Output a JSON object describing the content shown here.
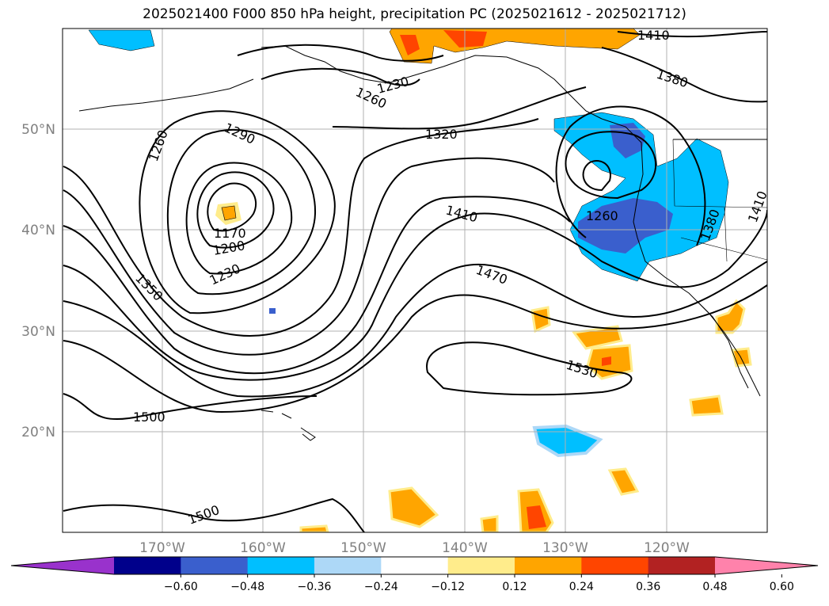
{
  "title": "2025021400 F000 850 hPa height, precipitation PC (2025021612 - 2025021712)",
  "lon_labels": [
    "170°W",
    "160°W",
    "150°W",
    "140°W",
    "130°W",
    "120°W"
  ],
  "lat_labels": [
    "50°N",
    "40°N",
    "30°N",
    "20°N"
  ],
  "contour_labels": [
    "1260",
    "1290",
    "1170",
    "1200",
    "1230",
    "1350",
    "1230",
    "1260",
    "1320",
    "1410",
    "1470",
    "1530",
    "1500",
    "1500",
    "1260",
    "1380",
    "1410",
    "1380",
    "1410"
  ],
  "colorbar": {
    "ticks": [
      "−0.60",
      "−0.48",
      "−0.36",
      "−0.24",
      "−0.12",
      "0.12",
      "0.24",
      "0.36",
      "0.48",
      "0.60"
    ],
    "colors": [
      "#9932cc",
      "#00008b",
      "#3a5fcd",
      "#00bfff",
      "#add8f7",
      "#ffffff",
      "#ffec8b",
      "#ffa500",
      "#ff4500",
      "#b22222",
      "#ff82ab"
    ]
  },
  "shading_colors": {
    "blue_light": "#add8f7",
    "blue": "#00bfff",
    "blue_dark": "#3a5fcd",
    "yellow": "#ffec8b",
    "orange": "#ffa500",
    "red": "#ff4500"
  }
}
